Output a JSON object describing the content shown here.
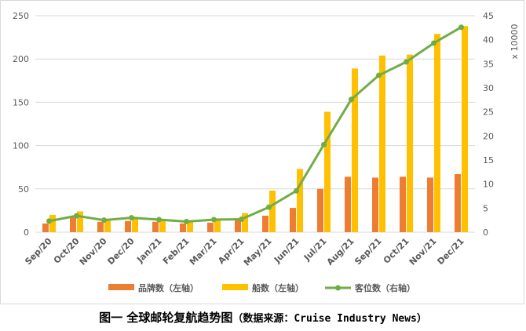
{
  "caption": {
    "title": "图一 全球邮轮复航趋势图",
    "source": "（数据来源：Cruise Industry News）"
  },
  "colors": {
    "brands": "#ed7d31",
    "ships": "#ffc000",
    "berths": "#70ad47",
    "grid": "#d9d9d9",
    "text": "#595959"
  },
  "chart_data": {
    "type": "bar",
    "categories": [
      "Sep/20",
      "Oct/20",
      "Nov/20",
      "Dec/20",
      "Jan/21",
      "Feb/21",
      "Mar/21",
      "Apr/21",
      "May/21",
      "Jun/21",
      "Jul/21",
      "Aug/21",
      "Sep/21",
      "Oct/21",
      "Nov/21",
      "Dec/21"
    ],
    "series": [
      {
        "name": "品牌数（左轴）",
        "kind": "bar",
        "axis": "left",
        "values": [
          10,
          17,
          12,
          13,
          12,
          10,
          11,
          15,
          19,
          28,
          50,
          64,
          63,
          64,
          63,
          67
        ]
      },
      {
        "name": "船数（左轴）",
        "kind": "bar",
        "axis": "left",
        "values": [
          20,
          24,
          14,
          17,
          15,
          13,
          14,
          22,
          48,
          73,
          139,
          189,
          204,
          205,
          229,
          238
        ]
      },
      {
        "name": "客位数（右轴）",
        "kind": "line",
        "axis": "right",
        "values": [
          2.3,
          3.4,
          2.5,
          3.0,
          2.6,
          2.2,
          2.6,
          2.7,
          5.2,
          8.6,
          18.2,
          27.6,
          32.6,
          35.4,
          39.3,
          42.6
        ]
      }
    ],
    "y_left": {
      "min": 0,
      "max": 250,
      "ticks": [
        0,
        50,
        100,
        150,
        200,
        250
      ]
    },
    "y_right": {
      "min": 0,
      "max": 45,
      "ticks": [
        0,
        5,
        10,
        15,
        20,
        25,
        30,
        35,
        40,
        45
      ],
      "unit": "x 10000"
    },
    "grid": true,
    "legend_position": "bottom"
  }
}
